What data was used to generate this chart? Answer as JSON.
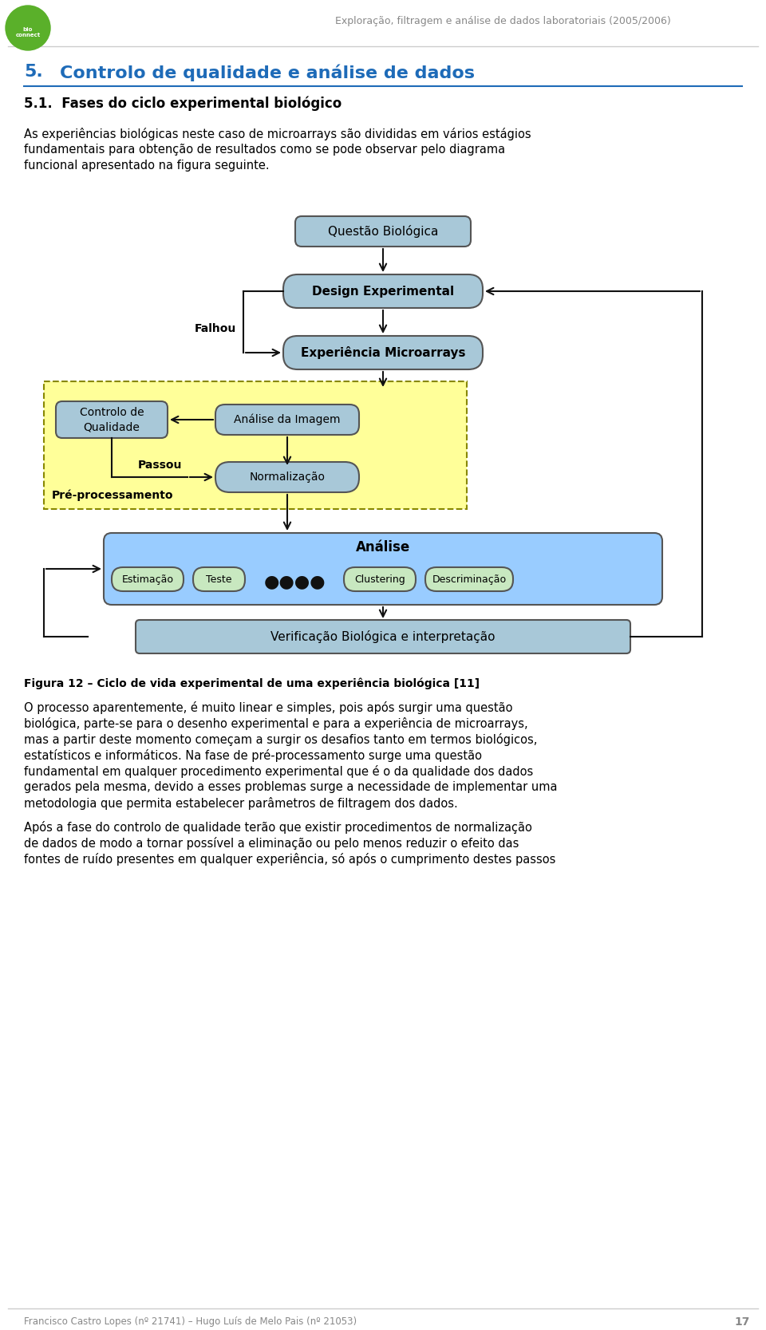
{
  "page_title": "Exploração, filtragem e análise de dados laboratoriais (2005/2006)",
  "section_number": "5.",
  "section_title": "Controlo de qualidade e análise de dados",
  "subsection": "5.1.  Fases do ciclo experimental biológico",
  "body_text_1": "As experiências biológicas neste caso de microarrays são divididas em vários estágios\nfundamentais para obtenção de resultados como se pode observar pelo diagrama\nfuncional apresentado na figura seguinte.",
  "figure_caption": "Figura 12 – Ciclo de vida experimental de uma experiência biológica [11]",
  "body_text_2": "O processo aparentemente, é muito linear e simples, pois após surgir uma questão\nbiológica, parte-se para o desenho experimental e para a experiência de microarrays,\nmas a partir deste momento começam a surgir os desafios tanto em termos biológicos,\nestatísticos e informáticos. Na fase de pré-processamento surge uma questão\nfundamental em qualquer procedimento experimental que é o da qualidade dos dados\ngerados pela mesma, devido a esses problemas surge a necessidade de implementar uma\nmetodologia que permita estabelecer parâmetros de filtragem dos dados.",
  "body_text_3": "Após a fase do controlo de qualidade terão que existir procedimentos de normalização\nde dados de modo a tornar possível a eliminação ou pelo menos reduzir o efeito das\nfontes de ruído presentes em qualquer experiência, só após o cumprimento destes passos",
  "footer_text": "Francisco Castro Lopes (nº 21741) – Hugo Luís de Melo Pais (nº 21053)",
  "page_number": "17",
  "bg_color": "#ffffff",
  "header_line_color": "#cccccc",
  "footer_line_color": "#cccccc",
  "section_title_color": "#1e6bb8",
  "body_text_color": "#000000",
  "header_text_color": "#888888",
  "footer_text_color": "#888888",
  "box_fill_steel": "#a8c8d8",
  "box_fill_light_steel": "#b8d8e8",
  "box_fill_green": "#c8e8c0",
  "box_fill_yellow_region": "#ffff99",
  "box_fill_analysis": "#99ccff",
  "box_stroke": "#555555",
  "arrow_color": "#111111",
  "logo_color": "#5ab02a",
  "falhou_label": "Falhou",
  "passou_label": "Passou",
  "pre_label": "Pré-processamento"
}
